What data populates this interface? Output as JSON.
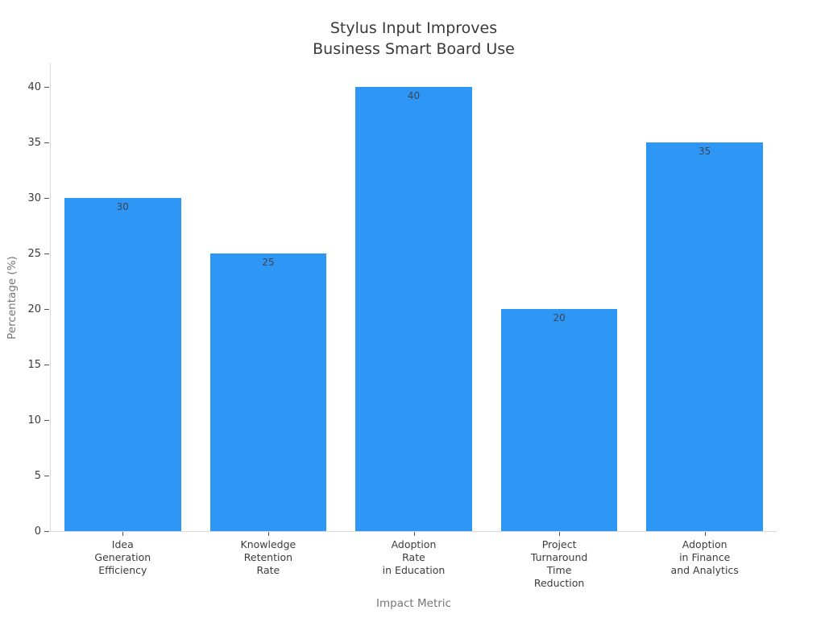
{
  "chart_data": {
    "type": "bar",
    "title": "Stylus Input Improves\nBusiness Smart Board Use",
    "xlabel": "Impact Metric",
    "ylabel": "Percentage (%)",
    "categories": [
      "Idea\nGeneration\nEfficiency",
      "Knowledge\nRetention\nRate",
      "Adoption\nRate\nin Education",
      "Project\nTurnaround\nTime\nReduction",
      "Adoption\nin Finance\nand Analytics"
    ],
    "values": [
      30,
      25,
      40,
      20,
      35
    ],
    "value_labels": [
      "30",
      "25",
      "40",
      "20",
      "35"
    ],
    "yticks": [
      0,
      5,
      10,
      15,
      20,
      25,
      30,
      35,
      40
    ],
    "ylim": [
      0,
      42.2
    ],
    "grid": false,
    "legend": null,
    "bar_color": "#2E96F5"
  },
  "colors": {
    "bar": "#2E96F5",
    "title_text": "#3a3a3a",
    "tick_text": "#3b3b3b",
    "axis_label_text": "#757575",
    "value_label_text": "#3d4553",
    "spine": "#d9d9d9",
    "tick_mark": "#555555",
    "background": "#ffffff"
  }
}
